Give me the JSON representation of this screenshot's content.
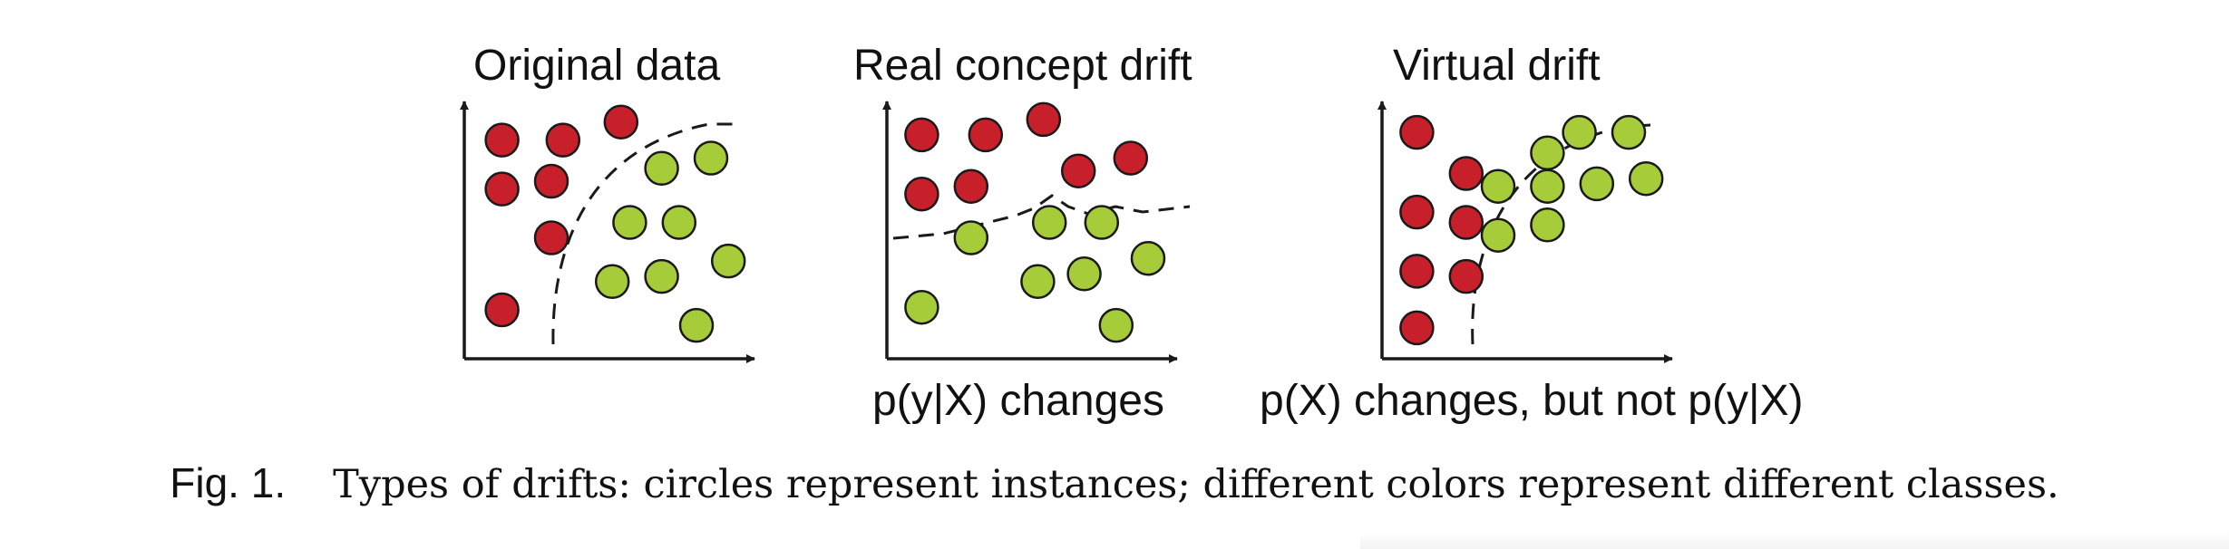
{
  "colors": {
    "red_class": "#c8202b",
    "green_class": "#a6cc3a",
    "stroke": "#1a1a1a"
  },
  "panels": [
    {
      "title": "Original data",
      "caption": "",
      "points": {
        "red": [
          [
            0.13,
            0.85
          ],
          [
            0.34,
            0.85
          ],
          [
            0.54,
            0.92
          ],
          [
            0.13,
            0.66
          ],
          [
            0.3,
            0.69
          ],
          [
            0.3,
            0.47
          ],
          [
            0.13,
            0.19
          ]
        ],
        "green": [
          [
            0.68,
            0.74
          ],
          [
            0.85,
            0.78
          ],
          [
            0.57,
            0.53
          ],
          [
            0.74,
            0.53
          ],
          [
            0.91,
            0.38
          ],
          [
            0.51,
            0.3
          ],
          [
            0.68,
            0.32
          ],
          [
            0.8,
            0.13
          ]
        ]
      }
    },
    {
      "title": "Real concept drift",
      "caption": "p(y|X) changes",
      "points": {
        "red": [
          [
            0.12,
            0.87
          ],
          [
            0.34,
            0.87
          ],
          [
            0.54,
            0.93
          ],
          [
            0.12,
            0.64
          ],
          [
            0.29,
            0.67
          ],
          [
            0.66,
            0.73
          ],
          [
            0.84,
            0.78
          ]
        ],
        "green": [
          [
            0.29,
            0.47
          ],
          [
            0.56,
            0.53
          ],
          [
            0.74,
            0.53
          ],
          [
            0.9,
            0.39
          ],
          [
            0.52,
            0.3
          ],
          [
            0.68,
            0.33
          ],
          [
            0.12,
            0.2
          ],
          [
            0.79,
            0.13
          ]
        ]
      }
    },
    {
      "title": "Virtual drift",
      "caption": "p(X) changes, but not p(y|X)",
      "points": {
        "red": [
          [
            0.12,
            0.88
          ],
          [
            0.29,
            0.72
          ],
          [
            0.12,
            0.57
          ],
          [
            0.29,
            0.53
          ],
          [
            0.12,
            0.34
          ],
          [
            0.29,
            0.32
          ],
          [
            0.12,
            0.12
          ]
        ],
        "green": [
          [
            0.68,
            0.88
          ],
          [
            0.85,
            0.88
          ],
          [
            0.57,
            0.8
          ],
          [
            0.4,
            0.67
          ],
          [
            0.57,
            0.67
          ],
          [
            0.74,
            0.68
          ],
          [
            0.91,
            0.7
          ],
          [
            0.57,
            0.52
          ],
          [
            0.4,
            0.48
          ]
        ]
      }
    }
  ],
  "figure_caption": {
    "label": "Fig. 1.",
    "text": "Types of drifts: circles represent instances; different colors represent different classes."
  }
}
